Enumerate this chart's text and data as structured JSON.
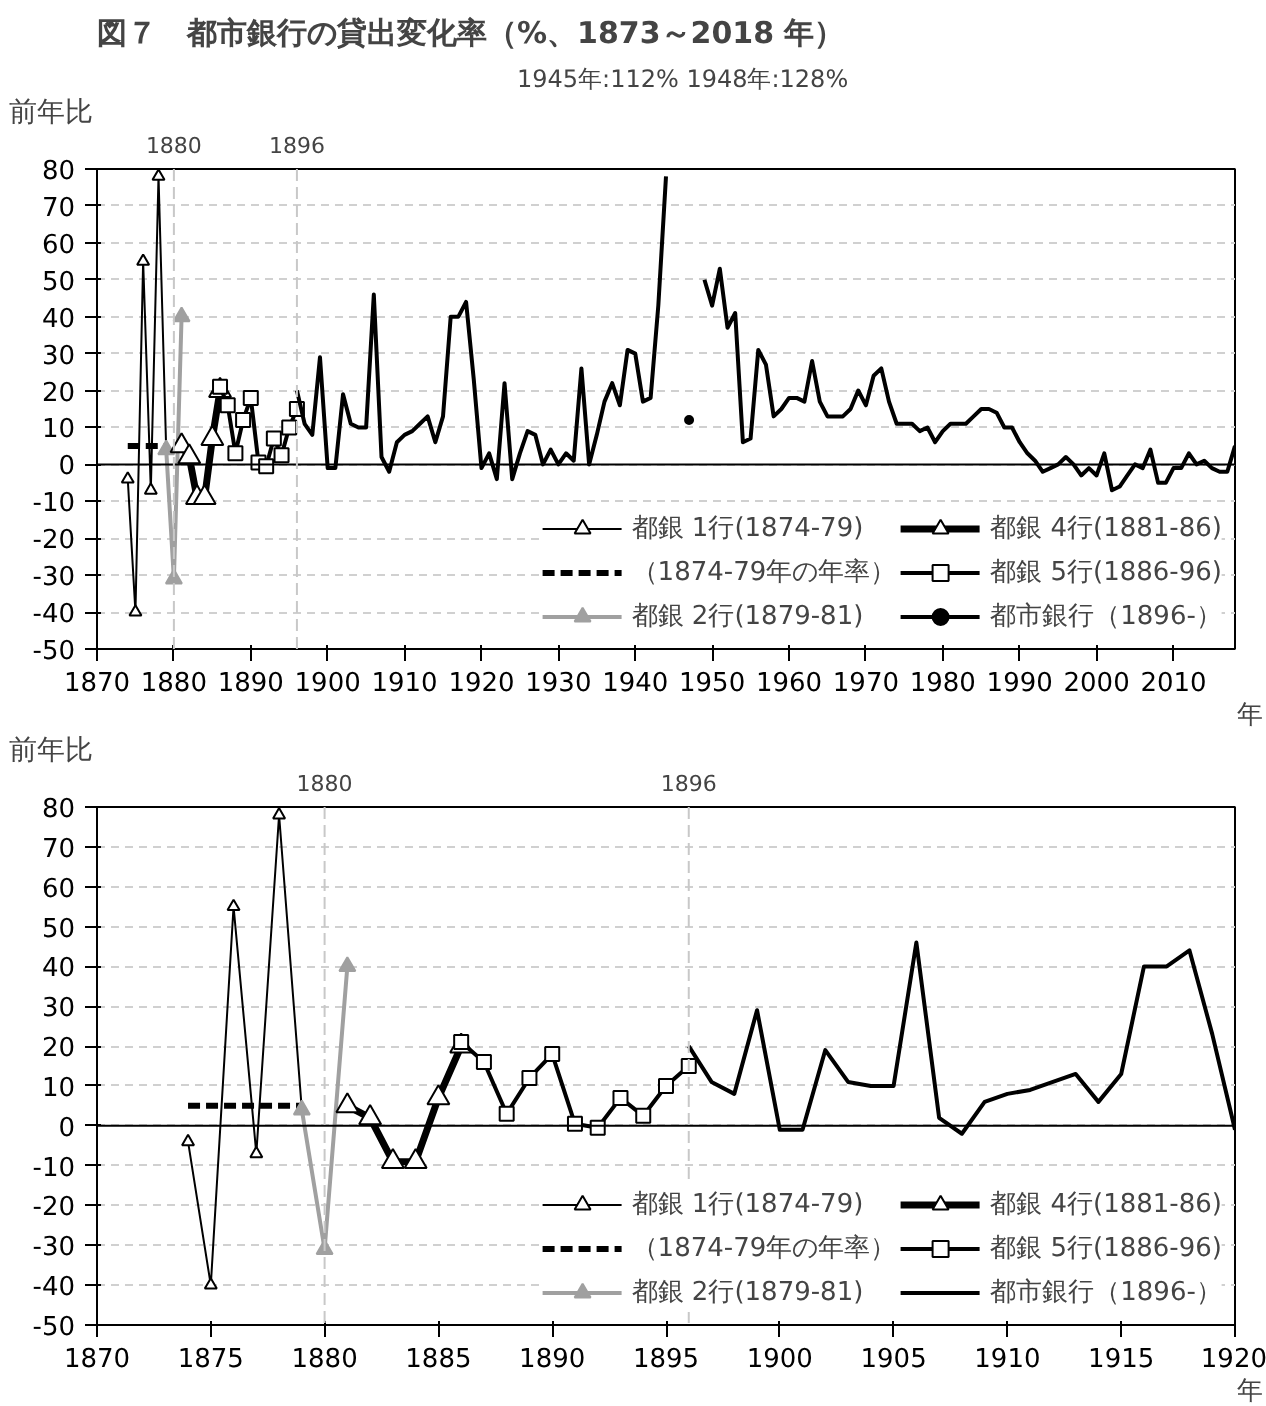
{
  "chart_data": [
    {
      "type": "line",
      "title": "図７　都市銀行の貸出変化率（%、1873～2018 年）",
      "ylabel": "前年比",
      "xlabel": "年",
      "annotations": [
        "1945年:112% 1948年:128%"
      ],
      "xlim": [
        1870,
        2018
      ],
      "xticks": [
        1870,
        1880,
        1890,
        1900,
        1910,
        1920,
        1930,
        1940,
        1950,
        1960,
        1970,
        1980,
        1990,
        2000,
        2010
      ],
      "ylim": [
        -50,
        80
      ],
      "yticks": [
        -50,
        -40,
        -30,
        -20,
        -10,
        0,
        10,
        20,
        30,
        40,
        50,
        60,
        70,
        80
      ],
      "grid": "y",
      "legend": "bottom right",
      "ref_lines": [
        {
          "axis": "x",
          "value": 1880,
          "label": "1880",
          "color": "#c8c8c8",
          "line_style": "dashed"
        },
        {
          "axis": "x",
          "value": 1896,
          "label": "1896",
          "color": "#c8c8c8",
          "line_style": "dashed"
        }
      ],
      "series": [
        {
          "name": "都銀 1行(1874-79)",
          "color": "#000000",
          "marker": "triangle",
          "line_style": "solid",
          "x": [
            1874,
            1875,
            1876,
            1877,
            1878,
            1879
          ],
          "values": [
            -4,
            -40,
            55,
            -7,
            78,
            4
          ]
        },
        {
          "name": "（1874-79年の年率）",
          "color": "#000000",
          "marker": "none",
          "line_style": "dashed",
          "x": [
            1874,
            1879
          ],
          "values": [
            5,
            5
          ]
        },
        {
          "name": "都銀 2行(1879-81)",
          "color": "#a0a0a0",
          "marker": "triangle",
          "line_style": "solid",
          "x": [
            1879,
            1880,
            1881
          ],
          "values": [
            4,
            -31,
            40
          ]
        },
        {
          "name": "都銀 4行(1881-86)",
          "color": "#000000",
          "marker": "triangle",
          "line_style": "solid",
          "x": [
            1881,
            1882,
            1883,
            1884,
            1885,
            1886
          ],
          "values": [
            5,
            2,
            -9,
            -9,
            7,
            20
          ]
        },
        {
          "name": "都銀 5行(1886-96)",
          "color": "#000000",
          "marker": "square",
          "line_style": "solid",
          "x": [
            1886,
            1887,
            1888,
            1889,
            1890,
            1891,
            1892,
            1893,
            1894,
            1895,
            1896
          ],
          "values": [
            21,
            16,
            3,
            12,
            18,
            0.5,
            -0.5,
            7,
            2.5,
            10,
            15
          ]
        },
        {
          "name": "都市銀行（1896-）",
          "color": "#000000",
          "marker": "none",
          "line_style": "solid",
          "x": [
            1896,
            1897,
            1898,
            1899,
            1900,
            1901,
            1902,
            1903,
            1904,
            1905,
            1906,
            1907,
            1908,
            1909,
            1910,
            1911,
            1912,
            1913,
            1914,
            1915,
            1916,
            1917,
            1918,
            1919,
            1920,
            1921,
            1922,
            1923,
            1924,
            1925,
            1926,
            1927,
            1928,
            1929,
            1930,
            1931,
            1932,
            1933,
            1934,
            1935,
            1936,
            1937,
            1938,
            1939,
            1940,
            1941,
            1942,
            1943,
            1944,
            1945,
            1946,
            1947,
            1948,
            1949,
            1950,
            1951,
            1952,
            1953,
            1954,
            1955,
            1956,
            1957,
            1958,
            1959,
            1960,
            1961,
            1962,
            1963,
            1964,
            1965,
            1966,
            1967,
            1968,
            1969,
            1970,
            1971,
            1972,
            1973,
            1974,
            1975,
            1976,
            1977,
            1978,
            1979,
            1980,
            1981,
            1982,
            1983,
            1984,
            1985,
            1986,
            1987,
            1988,
            1989,
            1990,
            1991,
            1992,
            1993,
            1994,
            1995,
            1996,
            1997,
            1998,
            1999,
            2000,
            2001,
            2002,
            2003,
            2004,
            2005,
            2006,
            2007,
            2008,
            2009,
            2010,
            2011,
            2012,
            2013,
            2014,
            2015,
            2016,
            2017,
            2018
          ],
          "values": [
            20,
            11,
            8,
            29,
            -1,
            -1,
            19,
            11,
            10,
            10,
            46,
            2,
            -2,
            6,
            8,
            9,
            11,
            13,
            6,
            13,
            40,
            40,
            44,
            23,
            -1,
            3,
            -4,
            22,
            -4,
            3,
            9,
            8,
            0,
            4,
            0,
            3,
            1,
            26,
            0,
            8,
            17,
            22,
            16,
            31,
            30,
            17,
            18,
            43,
            78,
            null,
            null,
            12,
            null,
            50,
            43,
            53,
            37,
            41,
            6,
            7,
            31,
            27,
            13,
            15,
            18,
            18,
            17,
            28,
            17,
            13,
            13,
            13,
            15,
            20,
            16,
            24,
            26,
            17,
            11,
            11,
            11,
            9,
            10,
            6,
            9,
            11,
            11,
            11,
            13,
            15,
            15,
            14,
            10,
            10,
            6,
            3,
            1,
            -2,
            -1,
            0,
            2,
            0,
            -3,
            -1,
            -3,
            3,
            -7,
            -6,
            -3,
            0,
            -1,
            4,
            -5,
            -5,
            -1,
            -1,
            3,
            0,
            1,
            -1,
            -2,
            -2,
            5
          ]
        }
      ]
    },
    {
      "type": "line",
      "ylabel": "前年比",
      "xlabel": "年",
      "xlim": [
        1870,
        1920
      ],
      "xticks": [
        1870,
        1875,
        1880,
        1885,
        1890,
        1895,
        1900,
        1905,
        1910,
        1915,
        1920
      ],
      "ylim": [
        -50,
        80
      ],
      "yticks": [
        -50,
        -40,
        -30,
        -20,
        -10,
        0,
        10,
        20,
        30,
        40,
        50,
        60,
        70,
        80
      ],
      "grid": "y",
      "legend": "bottom right",
      "ref_lines": [
        {
          "axis": "x",
          "value": 1880,
          "label": "1880",
          "color": "#c8c8c8",
          "line_style": "dashed"
        },
        {
          "axis": "x",
          "value": 1896,
          "label": "1896",
          "color": "#c8c8c8",
          "line_style": "dashed"
        }
      ],
      "series": [
        {
          "name": "都銀 1行(1874-79)",
          "color": "#000000",
          "marker": "triangle",
          "line_style": "solid",
          "x": [
            1874,
            1875,
            1876,
            1877,
            1878,
            1879
          ],
          "values": [
            -4,
            -40,
            55,
            -7,
            78,
            4
          ]
        },
        {
          "name": "（1874-79年の年率）",
          "color": "#000000",
          "marker": "none",
          "line_style": "dashed",
          "x": [
            1874,
            1879
          ],
          "values": [
            5,
            5
          ]
        },
        {
          "name": "都銀 2行(1879-81)",
          "color": "#a0a0a0",
          "marker": "triangle",
          "line_style": "solid",
          "x": [
            1879,
            1880,
            1881
          ],
          "values": [
            4,
            -31,
            40
          ]
        },
        {
          "name": "都銀 4行(1881-86)",
          "color": "#000000",
          "marker": "triangle",
          "line_style": "solid",
          "x": [
            1881,
            1882,
            1883,
            1884,
            1885,
            1886
          ],
          "values": [
            5,
            2,
            -9,
            -9,
            7,
            20
          ]
        },
        {
          "name": "都銀 5行(1886-96)",
          "color": "#000000",
          "marker": "square",
          "line_style": "solid",
          "x": [
            1886,
            1887,
            1888,
            1889,
            1890,
            1891,
            1892,
            1893,
            1894,
            1895,
            1896
          ],
          "values": [
            21,
            16,
            3,
            12,
            18,
            0.5,
            -0.5,
            7,
            2.5,
            10,
            15
          ]
        },
        {
          "name": "都市銀行（1896-）",
          "color": "#000000",
          "marker": "none",
          "line_style": "solid",
          "x": [
            1896,
            1897,
            1898,
            1899,
            1900,
            1901,
            1902,
            1903,
            1904,
            1905,
            1906,
            1907,
            1908,
            1909,
            1910,
            1911,
            1912,
            1913,
            1914,
            1915,
            1916,
            1917,
            1918,
            1919,
            1920
          ],
          "values": [
            20,
            11,
            8,
            29,
            -1,
            -1,
            19,
            11,
            10,
            10,
            46,
            2,
            -2,
            6,
            8,
            9,
            11,
            13,
            6,
            13,
            40,
            40,
            44,
            23,
            -1
          ]
        }
      ]
    }
  ]
}
